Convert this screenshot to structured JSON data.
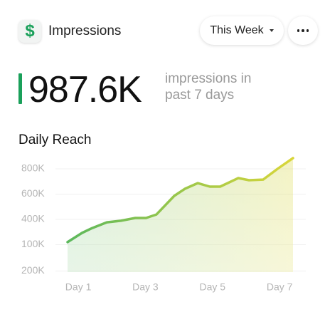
{
  "header": {
    "icon": "$",
    "title": "Impressions",
    "period": "This Week"
  },
  "metric": {
    "value": "987.6K",
    "label": "impressions in past 7 days"
  },
  "chart_data": {
    "type": "line",
    "title": "Daily Reach",
    "x": [
      0.68,
      1.11,
      1.42,
      1.85,
      2.27,
      2.7,
      3.02,
      3.33,
      3.86,
      4.18,
      4.56,
      4.92,
      5.23,
      5.77,
      6.09,
      6.51,
      6.94,
      7.4
    ],
    "values": [
      220,
      293,
      332,
      377,
      389,
      411,
      411,
      439,
      586,
      642,
      687,
      659,
      659,
      727,
      710,
      715,
      800,
      885
    ],
    "xlim": [
      0.68,
      7.4
    ],
    "xticks": [
      {
        "value": 1,
        "label": "Day 1"
      },
      {
        "value": 3,
        "label": "Day 3"
      },
      {
        "value": 5,
        "label": "Day 5"
      },
      {
        "value": 7,
        "label": "Day 7"
      }
    ],
    "ylim": [
      -17,
      900
    ],
    "yticks": [
      {
        "value": 800,
        "label": "800K"
      },
      {
        "value": 600,
        "label": "600K"
      },
      {
        "value": 400,
        "label": "400K"
      }
    ],
    "extra_ylabels": [
      "100K",
      "200K"
    ],
    "colors": [
      "#5cb85c",
      "#d9d63a"
    ],
    "grid": true
  }
}
